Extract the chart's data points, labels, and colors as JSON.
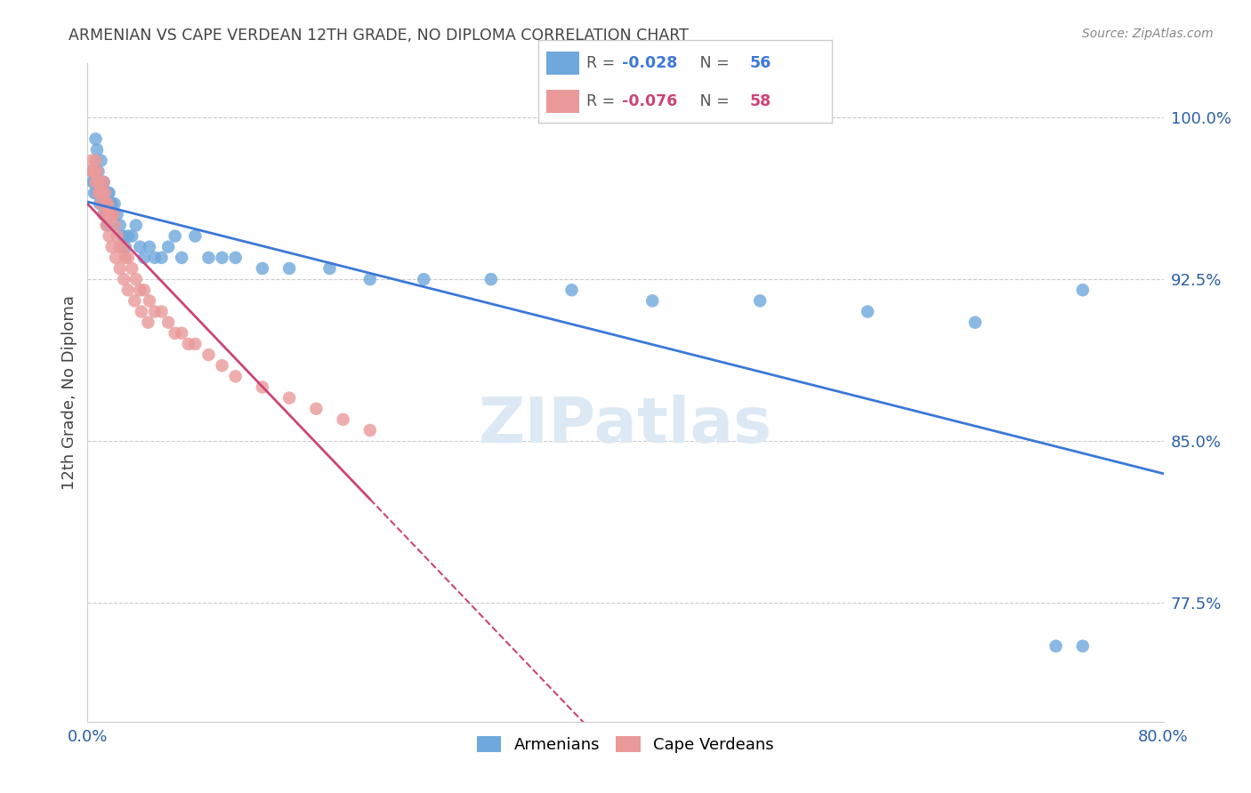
{
  "title": "ARMENIAN VS CAPE VERDEAN 12TH GRADE, NO DIPLOMA CORRELATION CHART",
  "source": "Source: ZipAtlas.com",
  "ylabel": "12th Grade, No Diploma",
  "xmin": 0.0,
  "xmax": 0.8,
  "ymin": 0.72,
  "ymax": 1.025,
  "yticks": [
    0.775,
    0.85,
    0.925,
    1.0
  ],
  "ytick_labels": [
    "77.5%",
    "85.0%",
    "92.5%",
    "100.0%"
  ],
  "xticks": [
    0.0,
    0.16,
    0.32,
    0.48,
    0.64,
    0.8
  ],
  "xtick_labels": [
    "0.0%",
    "",
    "",
    "",
    "",
    "80.0%"
  ],
  "armenian_R": -0.028,
  "armenian_N": 56,
  "capeverdean_R": -0.076,
  "capeverdean_N": 58,
  "blue_color": "#6fa8dc",
  "pink_color": "#ea9999",
  "blue_line_color": "#3c78d8",
  "pink_line_color": "#cc4477",
  "armenian_x": [
    0.003,
    0.004,
    0.005,
    0.006,
    0.007,
    0.008,
    0.009,
    0.01,
    0.011,
    0.012,
    0.013,
    0.014,
    0.015,
    0.016,
    0.017,
    0.018,
    0.019,
    0.02,
    0.022,
    0.024,
    0.026,
    0.028,
    0.03,
    0.033,
    0.036,
    0.039,
    0.042,
    0.046,
    0.05,
    0.055,
    0.06,
    0.065,
    0.07,
    0.08,
    0.09,
    0.1,
    0.11,
    0.13,
    0.15,
    0.18,
    0.21,
    0.25,
    0.3,
    0.36,
    0.42,
    0.5,
    0.58,
    0.66,
    0.74,
    0.005,
    0.007,
    0.009,
    0.012,
    0.015,
    0.74,
    0.72
  ],
  "armenian_y": [
    0.975,
    0.97,
    0.965,
    0.99,
    0.985,
    0.975,
    0.97,
    0.98,
    0.97,
    0.97,
    0.96,
    0.955,
    0.965,
    0.965,
    0.96,
    0.96,
    0.955,
    0.96,
    0.955,
    0.95,
    0.945,
    0.94,
    0.945,
    0.945,
    0.95,
    0.94,
    0.935,
    0.94,
    0.935,
    0.935,
    0.94,
    0.945,
    0.935,
    0.945,
    0.935,
    0.935,
    0.935,
    0.93,
    0.93,
    0.93,
    0.925,
    0.925,
    0.925,
    0.92,
    0.915,
    0.915,
    0.91,
    0.905,
    0.92,
    0.97,
    0.965,
    0.96,
    0.955,
    0.95,
    0.755,
    0.755
  ],
  "capeverdean_x": [
    0.003,
    0.004,
    0.005,
    0.006,
    0.007,
    0.008,
    0.009,
    0.01,
    0.011,
    0.012,
    0.013,
    0.014,
    0.015,
    0.016,
    0.017,
    0.018,
    0.019,
    0.02,
    0.022,
    0.024,
    0.026,
    0.028,
    0.03,
    0.033,
    0.036,
    0.039,
    0.042,
    0.046,
    0.05,
    0.055,
    0.06,
    0.065,
    0.07,
    0.075,
    0.08,
    0.09,
    0.1,
    0.11,
    0.13,
    0.15,
    0.17,
    0.19,
    0.21,
    0.004,
    0.006,
    0.008,
    0.01,
    0.012,
    0.014,
    0.016,
    0.018,
    0.021,
    0.024,
    0.027,
    0.03,
    0.035,
    0.04,
    0.045
  ],
  "capeverdean_y": [
    0.98,
    0.975,
    0.975,
    0.98,
    0.975,
    0.97,
    0.97,
    0.965,
    0.965,
    0.97,
    0.965,
    0.96,
    0.96,
    0.955,
    0.955,
    0.955,
    0.955,
    0.95,
    0.945,
    0.94,
    0.94,
    0.935,
    0.935,
    0.93,
    0.925,
    0.92,
    0.92,
    0.915,
    0.91,
    0.91,
    0.905,
    0.9,
    0.9,
    0.895,
    0.895,
    0.89,
    0.885,
    0.88,
    0.875,
    0.87,
    0.865,
    0.86,
    0.855,
    0.975,
    0.97,
    0.965,
    0.96,
    0.955,
    0.95,
    0.945,
    0.94,
    0.935,
    0.93,
    0.925,
    0.92,
    0.915,
    0.91,
    0.905
  ],
  "background_color": "#ffffff",
  "grid_color": "#cccccc",
  "title_color": "#444444",
  "tick_color": "#2b5fa5",
  "watermark": "ZIPatlas",
  "watermark_color": "#dce9f5"
}
